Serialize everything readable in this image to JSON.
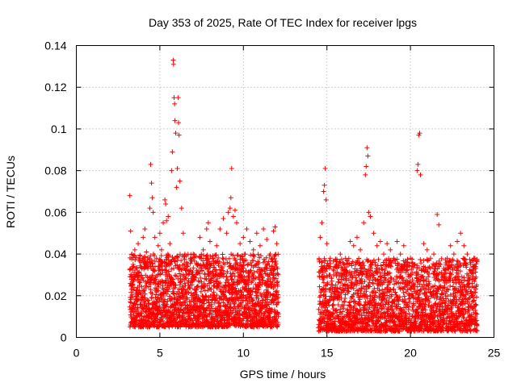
{
  "chart_data": {
    "type": "scatter",
    "title": "Day 353 of 2025, Rate Of TEC Index for receiver lpgs",
    "xlabel": "GPS time / hours",
    "ylabel": "ROTI / TECUs",
    "xlim": [
      0,
      25
    ],
    "ylim": [
      0,
      0.14
    ],
    "x_ticks": [
      "0",
      "5",
      "10",
      "15",
      "20",
      "25"
    ],
    "x_tick_values": [
      0,
      5,
      10,
      15,
      20,
      25
    ],
    "y_ticks": [
      "0",
      "0.02",
      "0.04",
      "0.06",
      "0.08",
      "0.1",
      "0.12",
      "0.14"
    ],
    "y_tick_values": [
      0,
      0.02,
      0.04,
      0.06,
      0.08,
      0.1,
      0.12,
      0.14
    ],
    "grid": true,
    "marker": "+",
    "color": "#ff0000",
    "series": [
      {
        "name": "ROTI",
        "points": [
          [
            3.2,
            0.068
          ],
          [
            3.25,
            0.051
          ],
          [
            3.3,
            0.025
          ],
          [
            3.4,
            0.035
          ],
          [
            3.5,
            0.042
          ],
          [
            3.6,
            0.03
          ],
          [
            3.7,
            0.045
          ],
          [
            3.8,
            0.038
          ],
          [
            3.9,
            0.028
          ],
          [
            4.0,
            0.048
          ],
          [
            4.1,
            0.052
          ],
          [
            4.2,
            0.041
          ],
          [
            4.3,
            0.035
          ],
          [
            4.4,
            0.062
          ],
          [
            4.45,
            0.083
          ],
          [
            4.5,
            0.074
          ],
          [
            4.55,
            0.067
          ],
          [
            4.6,
            0.06
          ],
          [
            4.7,
            0.048
          ],
          [
            4.8,
            0.038
          ],
          [
            4.9,
            0.044
          ],
          [
            5.0,
            0.05
          ],
          [
            5.1,
            0.042
          ],
          [
            5.2,
            0.055
          ],
          [
            5.3,
            0.066
          ],
          [
            5.35,
            0.064
          ],
          [
            5.4,
            0.056
          ],
          [
            5.5,
            0.058
          ],
          [
            5.6,
            0.045
          ],
          [
            5.7,
            0.08
          ],
          [
            5.75,
            0.089
          ],
          [
            5.8,
            0.133
          ],
          [
            5.82,
            0.131
          ],
          [
            5.85,
            0.115
          ],
          [
            5.88,
            0.112
          ],
          [
            5.9,
            0.104
          ],
          [
            5.95,
            0.098
          ],
          [
            6.0,
            0.072
          ],
          [
            6.05,
            0.081
          ],
          [
            6.1,
            0.115
          ],
          [
            6.12,
            0.103
          ],
          [
            6.15,
            0.097
          ],
          [
            6.2,
            0.075
          ],
          [
            6.3,
            0.062
          ],
          [
            6.4,
            0.05
          ],
          [
            6.5,
            0.04
          ],
          [
            6.6,
            0.036
          ],
          [
            6.8,
            0.032
          ],
          [
            7.0,
            0.04
          ],
          [
            7.2,
            0.035
          ],
          [
            7.4,
            0.048
          ],
          [
            7.6,
            0.042
          ],
          [
            7.8,
            0.052
          ],
          [
            7.9,
            0.055
          ],
          [
            8.0,
            0.046
          ],
          [
            8.2,
            0.038
          ],
          [
            8.4,
            0.044
          ],
          [
            8.6,
            0.052
          ],
          [
            8.8,
            0.057
          ],
          [
            9.0,
            0.05
          ],
          [
            9.1,
            0.06
          ],
          [
            9.2,
            0.062
          ],
          [
            9.25,
            0.067
          ],
          [
            9.3,
            0.081
          ],
          [
            9.4,
            0.058
          ],
          [
            9.5,
            0.061
          ],
          [
            9.6,
            0.055
          ],
          [
            9.8,
            0.045
          ],
          [
            10.0,
            0.048
          ],
          [
            10.2,
            0.052
          ],
          [
            10.4,
            0.046
          ],
          [
            10.6,
            0.042
          ],
          [
            10.8,
            0.05
          ],
          [
            11.0,
            0.044
          ],
          [
            11.2,
            0.052
          ],
          [
            11.4,
            0.047
          ],
          [
            11.6,
            0.04
          ],
          [
            11.8,
            0.051
          ],
          [
            11.9,
            0.053
          ],
          [
            12.0,
            0.045
          ],
          [
            14.6,
            0.048
          ],
          [
            14.7,
            0.055
          ],
          [
            14.8,
            0.07
          ],
          [
            14.85,
            0.073
          ],
          [
            14.9,
            0.081
          ],
          [
            14.95,
            0.066
          ],
          [
            15.0,
            0.045
          ],
          [
            15.2,
            0.038
          ],
          [
            15.4,
            0.03
          ],
          [
            15.6,
            0.035
          ],
          [
            15.8,
            0.04
          ],
          [
            16.0,
            0.032
          ],
          [
            16.2,
            0.037
          ],
          [
            16.4,
            0.046
          ],
          [
            16.6,
            0.044
          ],
          [
            16.8,
            0.048
          ],
          [
            17.0,
            0.042
          ],
          [
            17.2,
            0.055
          ],
          [
            17.3,
            0.078
          ],
          [
            17.35,
            0.082
          ],
          [
            17.4,
            0.091
          ],
          [
            17.45,
            0.087
          ],
          [
            17.5,
            0.06
          ],
          [
            17.6,
            0.058
          ],
          [
            17.8,
            0.05
          ],
          [
            18.0,
            0.044
          ],
          [
            18.2,
            0.046
          ],
          [
            18.4,
            0.04
          ],
          [
            18.6,
            0.045
          ],
          [
            18.8,
            0.042
          ],
          [
            19.0,
            0.038
          ],
          [
            19.2,
            0.046
          ],
          [
            19.4,
            0.04
          ],
          [
            19.6,
            0.044
          ],
          [
            19.8,
            0.036
          ],
          [
            20.0,
            0.038
          ],
          [
            20.4,
            0.08
          ],
          [
            20.45,
            0.083
          ],
          [
            20.5,
            0.097
          ],
          [
            20.55,
            0.098
          ],
          [
            20.6,
            0.078
          ],
          [
            20.8,
            0.045
          ],
          [
            21.0,
            0.042
          ],
          [
            21.2,
            0.038
          ],
          [
            21.4,
            0.04
          ],
          [
            21.6,
            0.059
          ],
          [
            21.7,
            0.054
          ],
          [
            21.8,
            0.035
          ],
          [
            22.0,
            0.033
          ],
          [
            22.2,
            0.038
          ],
          [
            22.4,
            0.044
          ],
          [
            22.6,
            0.04
          ],
          [
            22.8,
            0.046
          ],
          [
            23.0,
            0.05
          ],
          [
            23.2,
            0.044
          ],
          [
            23.4,
            0.04
          ],
          [
            23.6,
            0.036
          ],
          [
            23.8,
            0.038
          ],
          [
            23.9,
            0.034
          ]
        ],
        "dense_bands": [
          {
            "x": [
              3.2,
              12.1
            ],
            "y": [
              0.005,
              0.04
            ]
          },
          {
            "x": [
              14.5,
              24.0
            ],
            "y": [
              0.003,
              0.038
            ]
          }
        ]
      }
    ]
  }
}
